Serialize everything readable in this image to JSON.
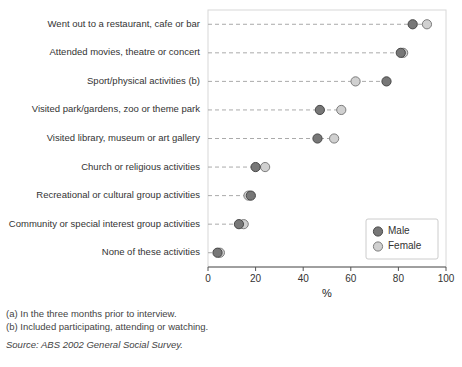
{
  "chart_data": {
    "type": "dot",
    "orientation": "horizontal",
    "categories": [
      "Went out to a restaurant, cafe or bar",
      "Attended movies, theatre or concert",
      "Sport/physical activities (b)",
      "Visited park/gardens, zoo or theme park",
      "Visited library, museum or art gallery",
      "Church or religious activities",
      "Recreational or cultural group activities",
      "Community or special interest group activities",
      "None of these activities"
    ],
    "series": [
      {
        "name": "Male",
        "color": "#777777",
        "values": [
          86,
          81,
          75,
          47,
          46,
          20,
          18,
          13,
          4
        ]
      },
      {
        "name": "Female",
        "color": "#d0d0d0",
        "values": [
          92,
          82,
          62,
          56,
          53,
          24,
          17,
          15,
          5
        ]
      }
    ],
    "xlabel": "%",
    "xlim": [
      0,
      100
    ],
    "xticks": [
      0,
      20,
      40,
      60,
      80,
      100
    ],
    "grid": false,
    "legend": "lower right",
    "notes": [
      "(a)  In the three months prior to interview.",
      "(b)  Included participating, attending or watching."
    ],
    "source": "Source:  ABS 2002 General Social Survey."
  }
}
